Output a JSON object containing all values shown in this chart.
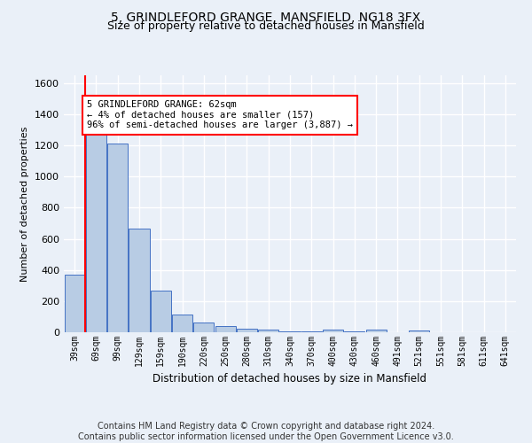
{
  "title": "5, GRINDLEFORD GRANGE, MANSFIELD, NG18 3FX",
  "subtitle": "Size of property relative to detached houses in Mansfield",
  "xlabel": "Distribution of detached houses by size in Mansfield",
  "ylabel": "Number of detached properties",
  "categories": [
    "39sqm",
    "69sqm",
    "99sqm",
    "129sqm",
    "159sqm",
    "190sqm",
    "220sqm",
    "250sqm",
    "280sqm",
    "310sqm",
    "340sqm",
    "370sqm",
    "400sqm",
    "430sqm",
    "460sqm",
    "491sqm",
    "521sqm",
    "551sqm",
    "581sqm",
    "611sqm",
    "641sqm"
  ],
  "values": [
    370,
    1270,
    1210,
    665,
    265,
    115,
    65,
    37,
    22,
    15,
    6,
    5,
    15,
    5,
    15,
    0,
    13,
    0,
    0,
    0,
    0
  ],
  "bar_color": "#b8cce4",
  "bar_edge_color": "#4472c4",
  "annotation_line1": "5 GRINDLEFORD GRANGE: 62sqm",
  "annotation_line2": "← 4% of detached houses are smaller (157)",
  "annotation_line3": "96% of semi-detached houses are larger (3,887) →",
  "ylim": [
    0,
    1650
  ],
  "yticks": [
    0,
    200,
    400,
    600,
    800,
    1000,
    1200,
    1400,
    1600
  ],
  "footer_text": "Contains HM Land Registry data © Crown copyright and database right 2024.\nContains public sector information licensed under the Open Government Licence v3.0.",
  "background_color": "#eaf0f8",
  "plot_bg_color": "#eaf0f8",
  "grid_color": "#ffffff",
  "title_fontsize": 10,
  "subtitle_fontsize": 9,
  "footer_fontsize": 7
}
